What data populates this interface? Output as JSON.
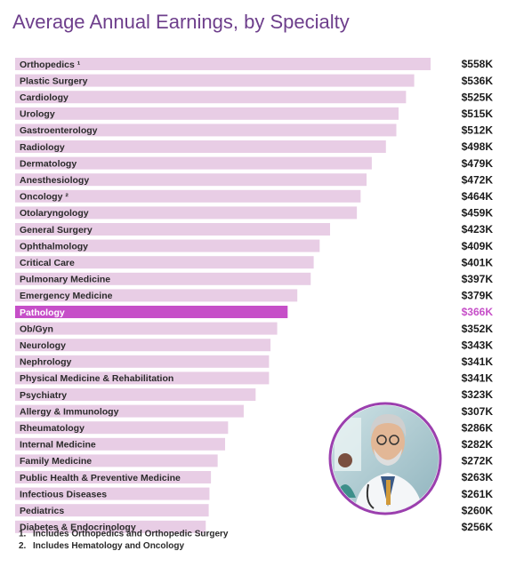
{
  "chart_data": {
    "type": "bar",
    "orientation": "horizontal",
    "title": "Average Annual Earnings, by Specialty",
    "categories": [
      "Orthopedics ¹",
      "Plastic Surgery",
      "Cardiology",
      "Urology",
      "Gastroenterology",
      "Radiology",
      "Dermatology",
      "Anesthesiology",
      "Oncology ²",
      "Otolaryngology",
      "General Surgery",
      "Ophthalmology",
      "Critical Care",
      "Pulmonary Medicine",
      "Emergency Medicine",
      "Pathology",
      "Ob/Gyn",
      "Neurology",
      "Nephrology",
      "Physical Medicine & Rehabilitation",
      "Psychiatry",
      "Allergy & Immunology",
      "Rheumatology",
      "Internal Medicine",
      "Family Medicine",
      "Public Health & Preventive Medicine",
      "Infectious Diseases",
      "Pediatrics",
      "Diabetes & Endocrinology"
    ],
    "values": [
      558,
      536,
      525,
      515,
      512,
      498,
      479,
      472,
      464,
      459,
      423,
      409,
      401,
      397,
      379,
      366,
      352,
      343,
      341,
      341,
      323,
      307,
      286,
      282,
      272,
      263,
      261,
      260,
      256
    ],
    "value_labels": [
      "$558K",
      "$536K",
      "$525K",
      "$515K",
      "$512K",
      "$498K",
      "$479K",
      "$472K",
      "$464K",
      "$459K",
      "$423K",
      "$409K",
      "$401K",
      "$397K",
      "$379K",
      "$366K",
      "$352K",
      "$343K",
      "$341K",
      "$341K",
      "$323K",
      "$307K",
      "$286K",
      "$282K",
      "$272K",
      "$263K",
      "$261K",
      "$260K",
      "$256K"
    ],
    "color": "#e8cde5",
    "colors": [
      "#e8cde5",
      "#e8cde5",
      "#e8cde5",
      "#e8cde5",
      "#e8cde5",
      "#e8cde5",
      "#e8cde5",
      "#e8cde5",
      "#e8cde5",
      "#e8cde5",
      "#e8cde5",
      "#e8cde5",
      "#e8cde5",
      "#e8cde5",
      "#e8cde5",
      "#c64fc8",
      "#e8cde5",
      "#e8cde5",
      "#e8cde5",
      "#e8cde5",
      "#e8cde5",
      "#e8cde5",
      "#e8cde5",
      "#e8cde5",
      "#e8cde5",
      "#e8cde5",
      "#e8cde5",
      "#e8cde5",
      "#e8cde5"
    ],
    "footnotes": [
      {
        "marker": "1.",
        "text": "Includes Orthopedics and Orthopedic Surgery"
      },
      {
        "marker": "2.",
        "text": "Includes Hematology and Oncology"
      }
    ]
  }
}
